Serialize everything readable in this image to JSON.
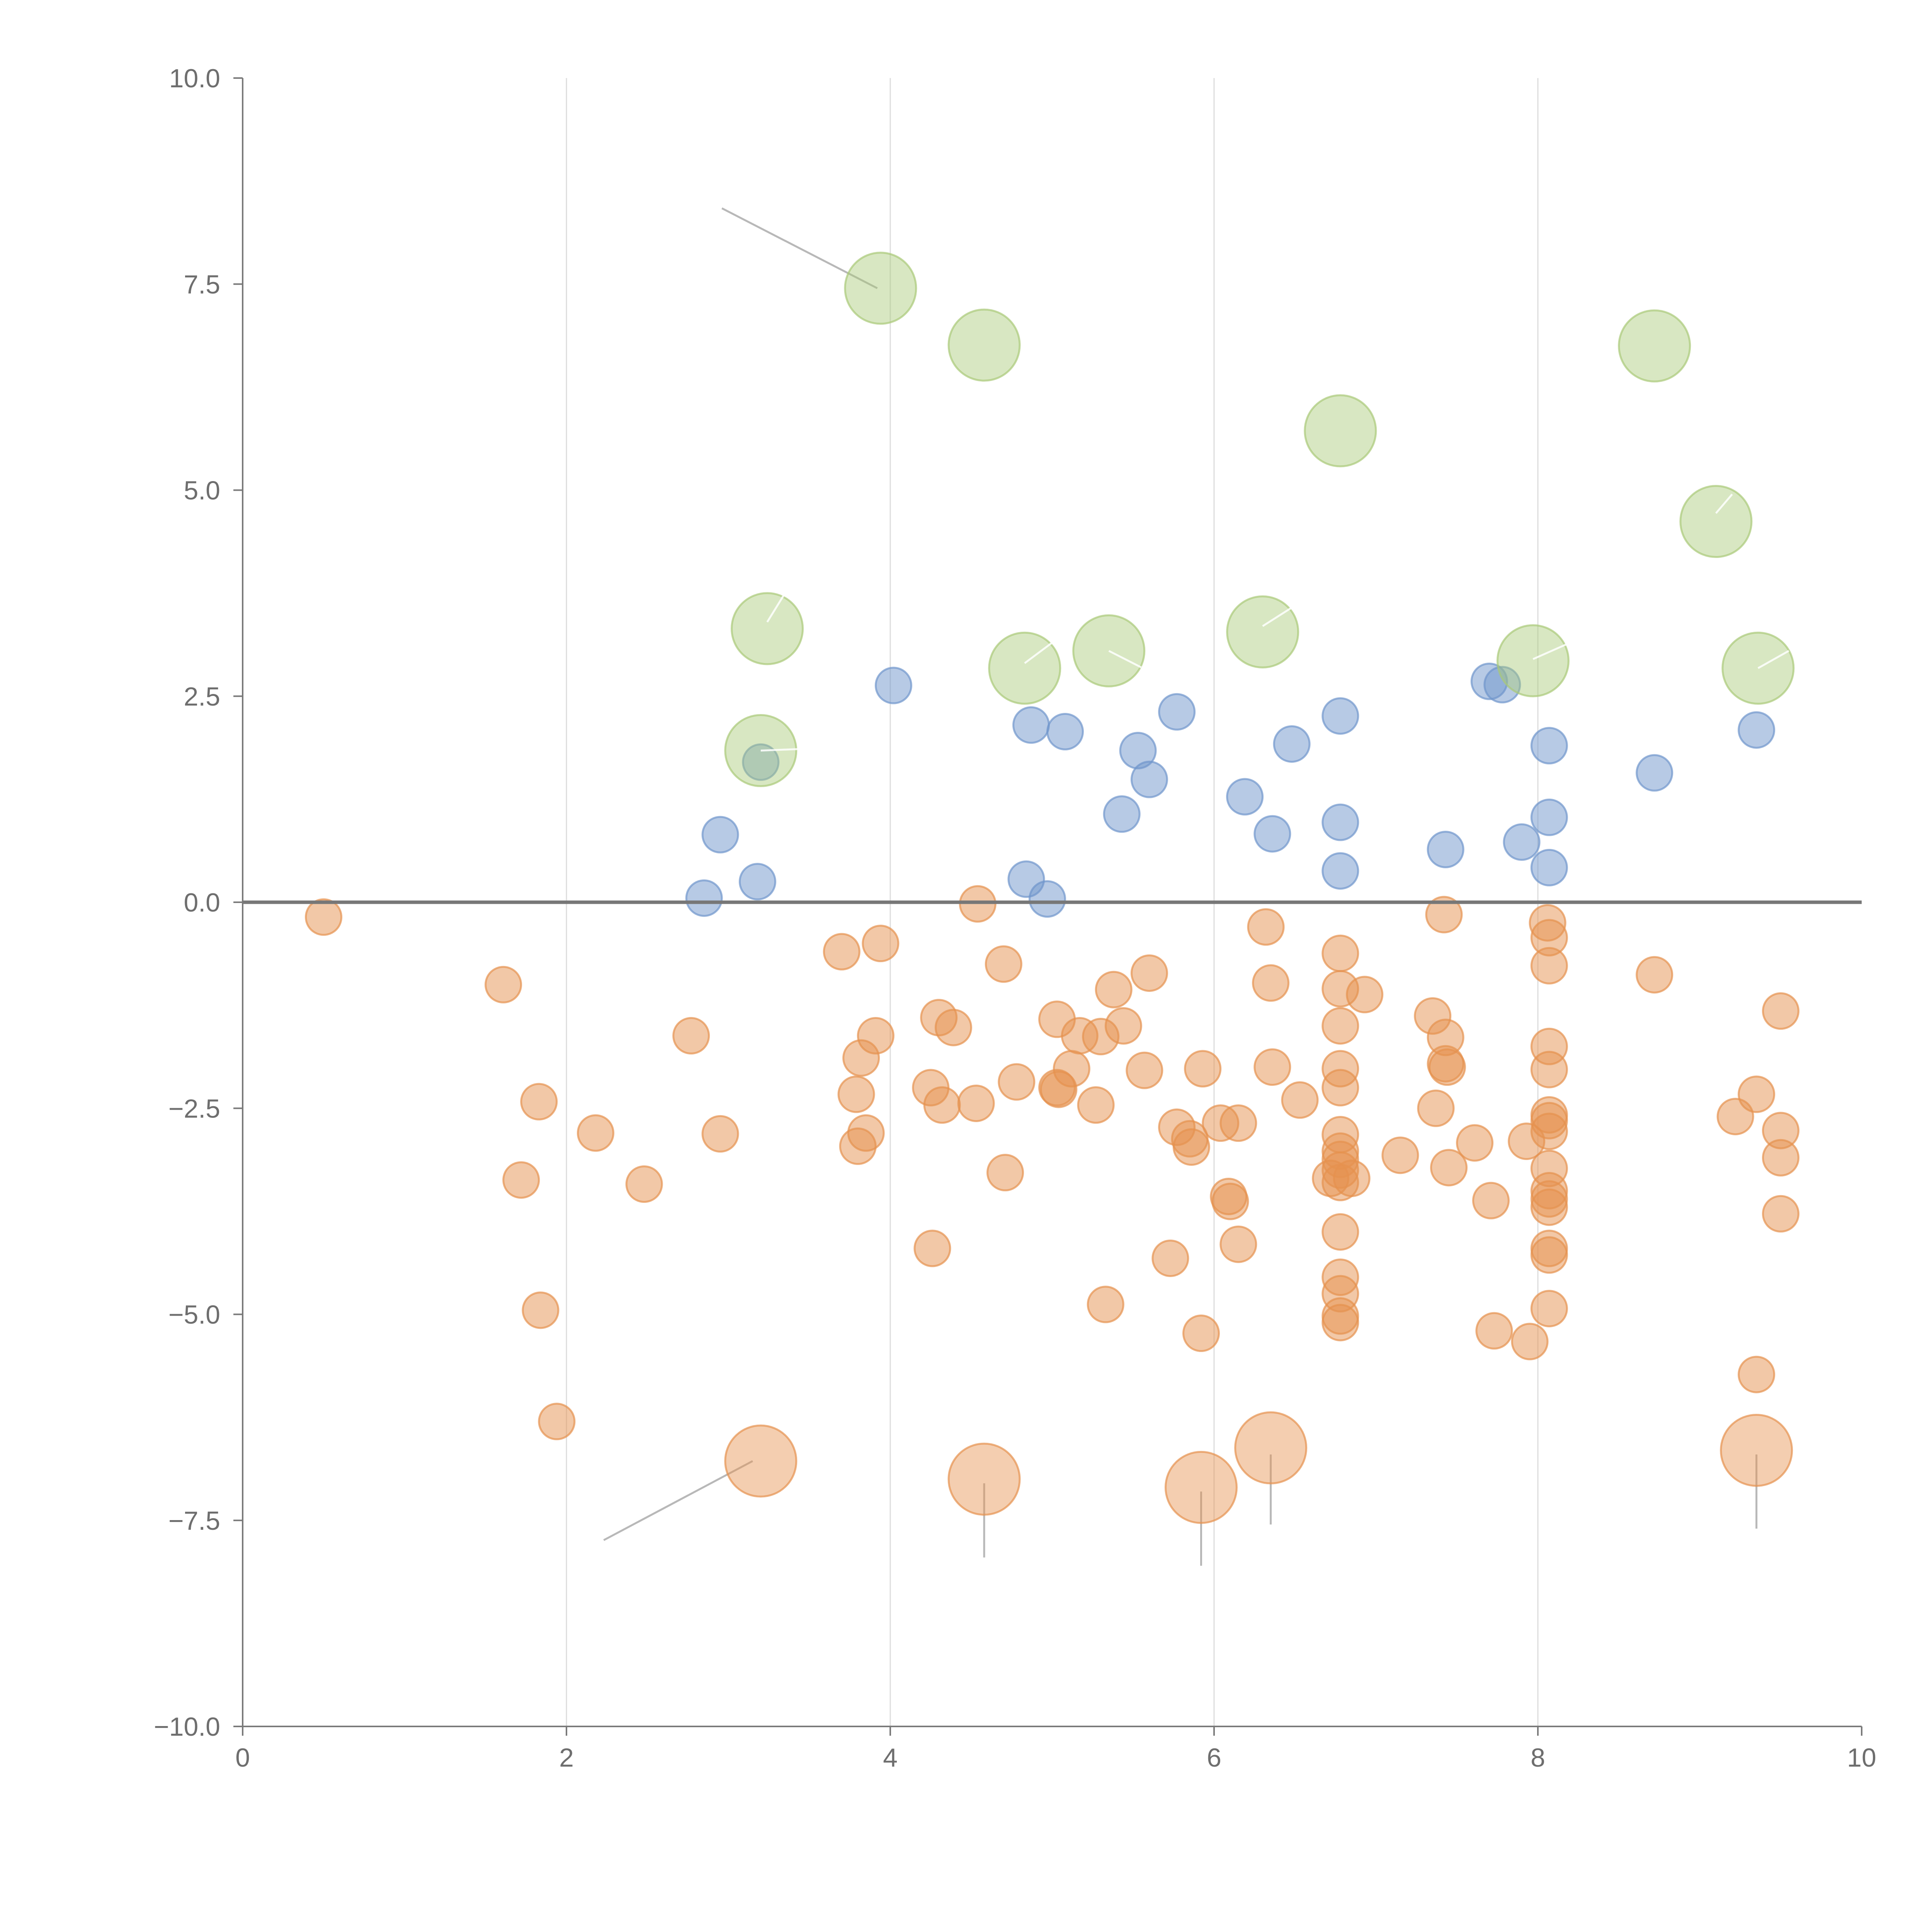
{
  "chart_data": {
    "type": "scatter",
    "title": "",
    "xlabel": "",
    "ylabel": "",
    "xlim": [
      0,
      10
    ],
    "ylim": [
      -10,
      10
    ],
    "grid": "vertical",
    "reference_line_y": 0,
    "x_ticks": [
      0,
      2,
      4,
      6,
      8,
      10
    ],
    "x_tick_labels": [
      "0",
      "2",
      "4",
      "6",
      "8",
      "10"
    ],
    "y_ticks": [
      10,
      7.5,
      5,
      2.5,
      0,
      -2.5,
      -5,
      -7.5,
      -10
    ],
    "y_tick_labels": [
      "10.0",
      "7.5",
      "5.0",
      "2.5",
      "0.0",
      "−2.5",
      "−5.0",
      "−7.5",
      "−10.0"
    ],
    "colors": {
      "orange": "#e6924f",
      "blue": "#6f95cc",
      "green": "#a9c978"
    },
    "series": [
      {
        "name": "orange-small",
        "color": "#e6924f",
        "size": "small",
        "points": [
          [
            0.5,
            -0.18
          ],
          [
            1.61,
            -1.0
          ],
          [
            1.72,
            -3.37
          ],
          [
            1.83,
            -2.42
          ],
          [
            1.84,
            -4.95
          ],
          [
            1.94,
            -6.3
          ],
          [
            2.18,
            -2.8
          ],
          [
            2.48,
            -3.42
          ],
          [
            2.77,
            -1.62
          ],
          [
            2.95,
            -2.81
          ],
          [
            3.7,
            -0.6
          ],
          [
            3.79,
            -2.33
          ],
          [
            3.8,
            -2.96
          ],
          [
            3.82,
            -1.89
          ],
          [
            3.85,
            -2.8
          ],
          [
            3.91,
            -1.62
          ],
          [
            3.94,
            -0.5
          ],
          [
            4.26,
            -4.2
          ],
          [
            4.25,
            -2.25
          ],
          [
            4.3,
            -1.4
          ],
          [
            4.32,
            -2.46
          ],
          [
            4.39,
            -1.52
          ],
          [
            4.53,
            -2.44
          ],
          [
            4.54,
            -0.02
          ],
          [
            4.7,
            -0.75
          ],
          [
            4.71,
            -3.28
          ],
          [
            4.78,
            -2.18
          ],
          [
            5.03,
            -1.42
          ],
          [
            5.03,
            -2.25
          ],
          [
            5.04,
            -2.27
          ],
          [
            5.12,
            -2.02
          ],
          [
            5.17,
            -1.62
          ],
          [
            5.27,
            -2.46
          ],
          [
            5.3,
            -1.63
          ],
          [
            5.33,
            -4.88
          ],
          [
            5.38,
            -1.06
          ],
          [
            5.44,
            -1.5
          ],
          [
            5.57,
            -2.04
          ],
          [
            5.6,
            -0.86
          ],
          [
            5.73,
            -4.32
          ],
          [
            5.77,
            -2.73
          ],
          [
            5.85,
            -2.87
          ],
          [
            5.86,
            -2.97
          ],
          [
            5.92,
            -5.23
          ],
          [
            5.93,
            -2.02
          ],
          [
            6.04,
            -2.68
          ],
          [
            6.09,
            -3.57
          ],
          [
            6.1,
            -3.63
          ],
          [
            6.15,
            -4.15
          ],
          [
            6.15,
            -2.68
          ],
          [
            6.32,
            -0.3
          ],
          [
            6.35,
            -0.98
          ],
          [
            6.36,
            -2.0
          ],
          [
            6.53,
            -2.4
          ],
          [
            6.78,
            -0.62
          ],
          [
            6.78,
            -1.05
          ],
          [
            6.78,
            -1.5
          ],
          [
            6.78,
            -2.02
          ],
          [
            6.78,
            -2.25
          ],
          [
            6.78,
            -2.82
          ],
          [
            6.78,
            -3.02
          ],
          [
            6.78,
            -3.12
          ],
          [
            6.78,
            -3.25
          ],
          [
            6.78,
            -3.4
          ],
          [
            6.78,
            -4.0
          ],
          [
            6.78,
            -4.55
          ],
          [
            6.78,
            -4.75
          ],
          [
            6.78,
            -5.02
          ],
          [
            6.78,
            -5.1
          ],
          [
            6.72,
            -3.35
          ],
          [
            6.85,
            -3.35
          ],
          [
            6.93,
            -1.12
          ],
          [
            7.15,
            -3.07
          ],
          [
            7.35,
            -1.38
          ],
          [
            7.37,
            -2.5
          ],
          [
            7.42,
            -0.15
          ],
          [
            7.43,
            -1.64
          ],
          [
            7.43,
            -1.96
          ],
          [
            7.44,
            -2.0
          ],
          [
            7.45,
            -3.22
          ],
          [
            7.61,
            -2.92
          ],
          [
            7.71,
            -3.62
          ],
          [
            7.73,
            -5.2
          ],
          [
            7.93,
            -2.9
          ],
          [
            7.95,
            -5.33
          ],
          [
            8.06,
            -0.25
          ],
          [
            8.07,
            -0.43
          ],
          [
            8.07,
            -0.77
          ],
          [
            8.07,
            -1.75
          ],
          [
            8.07,
            -2.03
          ],
          [
            8.07,
            -2.58
          ],
          [
            8.07,
            -2.65
          ],
          [
            8.07,
            -2.78
          ],
          [
            8.07,
            -3.23
          ],
          [
            8.07,
            -3.5
          ],
          [
            8.07,
            -3.6
          ],
          [
            8.07,
            -3.7
          ],
          [
            8.07,
            -4.2
          ],
          [
            8.07,
            -4.28
          ],
          [
            8.07,
            -4.93
          ],
          [
            8.72,
            -0.88
          ],
          [
            9.22,
            -2.6
          ],
          [
            9.35,
            -2.33
          ],
          [
            9.35,
            -5.73
          ],
          [
            9.5,
            -1.32
          ],
          [
            9.5,
            -2.77
          ],
          [
            9.5,
            -3.1
          ],
          [
            9.5,
            -3.78
          ]
        ]
      },
      {
        "name": "blue",
        "color": "#6f95cc",
        "size": "small",
        "points": [
          [
            2.85,
            0.05
          ],
          [
            2.95,
            0.82
          ],
          [
            3.18,
            0.25
          ],
          [
            3.2,
            1.7
          ],
          [
            4.02,
            2.63
          ],
          [
            4.84,
            0.28
          ],
          [
            4.87,
            2.15
          ],
          [
            4.97,
            0.04
          ],
          [
            5.08,
            2.07
          ],
          [
            5.43,
            1.07
          ],
          [
            5.53,
            1.84
          ],
          [
            5.6,
            1.49
          ],
          [
            5.77,
            2.31
          ],
          [
            6.19,
            1.28
          ],
          [
            6.36,
            0.83
          ],
          [
            6.48,
            1.92
          ],
          [
            6.78,
            2.26
          ],
          [
            6.78,
            0.97
          ],
          [
            6.78,
            0.38
          ],
          [
            7.43,
            0.64
          ],
          [
            7.7,
            2.68
          ],
          [
            7.78,
            2.64
          ],
          [
            7.9,
            0.73
          ],
          [
            8.07,
            1.9
          ],
          [
            8.07,
            1.03
          ],
          [
            8.07,
            0.42
          ],
          [
            8.72,
            1.57
          ],
          [
            9.35,
            2.09
          ]
        ]
      },
      {
        "name": "green-large",
        "color": "#a9c978",
        "size": "large",
        "points": [
          [
            3.94,
            7.45
          ],
          [
            4.58,
            6.76
          ],
          [
            3.24,
            3.32
          ],
          [
            3.2,
            1.84
          ],
          [
            4.83,
            2.84
          ],
          [
            5.35,
            3.05
          ],
          [
            6.3,
            3.28
          ],
          [
            6.78,
            5.72
          ],
          [
            7.97,
            2.93
          ],
          [
            8.72,
            6.75
          ],
          [
            9.1,
            4.62
          ],
          [
            9.36,
            2.84
          ]
        ]
      },
      {
        "name": "orange-large",
        "color": "#e6924f",
        "size": "large",
        "points": [
          [
            3.2,
            -6.78
          ],
          [
            4.58,
            -7.0
          ],
          [
            5.92,
            -7.1
          ],
          [
            6.35,
            -6.62
          ],
          [
            9.35,
            -6.65
          ]
        ]
      }
    ],
    "annotation_leaders": [
      {
        "from": [
          3.92,
          7.45
        ],
        "to": [
          2.96,
          8.42
        ],
        "style": "grey"
      },
      {
        "from": [
          3.15,
          -6.78
        ],
        "to": [
          2.23,
          -7.74
        ],
        "style": "grey"
      },
      {
        "from": [
          4.58,
          -7.05
        ],
        "to": [
          4.58,
          -7.95
        ],
        "style": "grey"
      },
      {
        "from": [
          5.92,
          -7.15
        ],
        "to": [
          5.92,
          -8.05
        ],
        "style": "grey"
      },
      {
        "from": [
          6.35,
          -6.7
        ],
        "to": [
          6.35,
          -7.55
        ],
        "style": "grey"
      },
      {
        "from": [
          9.35,
          -6.7
        ],
        "to": [
          9.35,
          -7.6
        ],
        "style": "grey"
      },
      {
        "from": [
          3.24,
          3.4
        ],
        "to": [
          3.35,
          3.75
        ],
        "style": "light"
      },
      {
        "from": [
          4.83,
          2.9
        ],
        "to": [
          5.0,
          3.15
        ],
        "style": "light"
      },
      {
        "from": [
          5.35,
          3.05
        ],
        "to": [
          5.55,
          2.85
        ],
        "style": "light"
      },
      {
        "from": [
          6.3,
          3.35
        ],
        "to": [
          6.5,
          3.6
        ],
        "style": "light"
      },
      {
        "from": [
          7.97,
          2.95
        ],
        "to": [
          8.2,
          3.15
        ],
        "style": "light"
      },
      {
        "from": [
          9.1,
          4.72
        ],
        "to": [
          9.2,
          4.95
        ],
        "style": "light"
      },
      {
        "from": [
          9.36,
          2.84
        ],
        "to": [
          9.55,
          3.05
        ],
        "style": "light"
      },
      {
        "from": [
          3.2,
          1.84
        ],
        "to": [
          3.45,
          1.86
        ],
        "style": "light"
      }
    ]
  }
}
